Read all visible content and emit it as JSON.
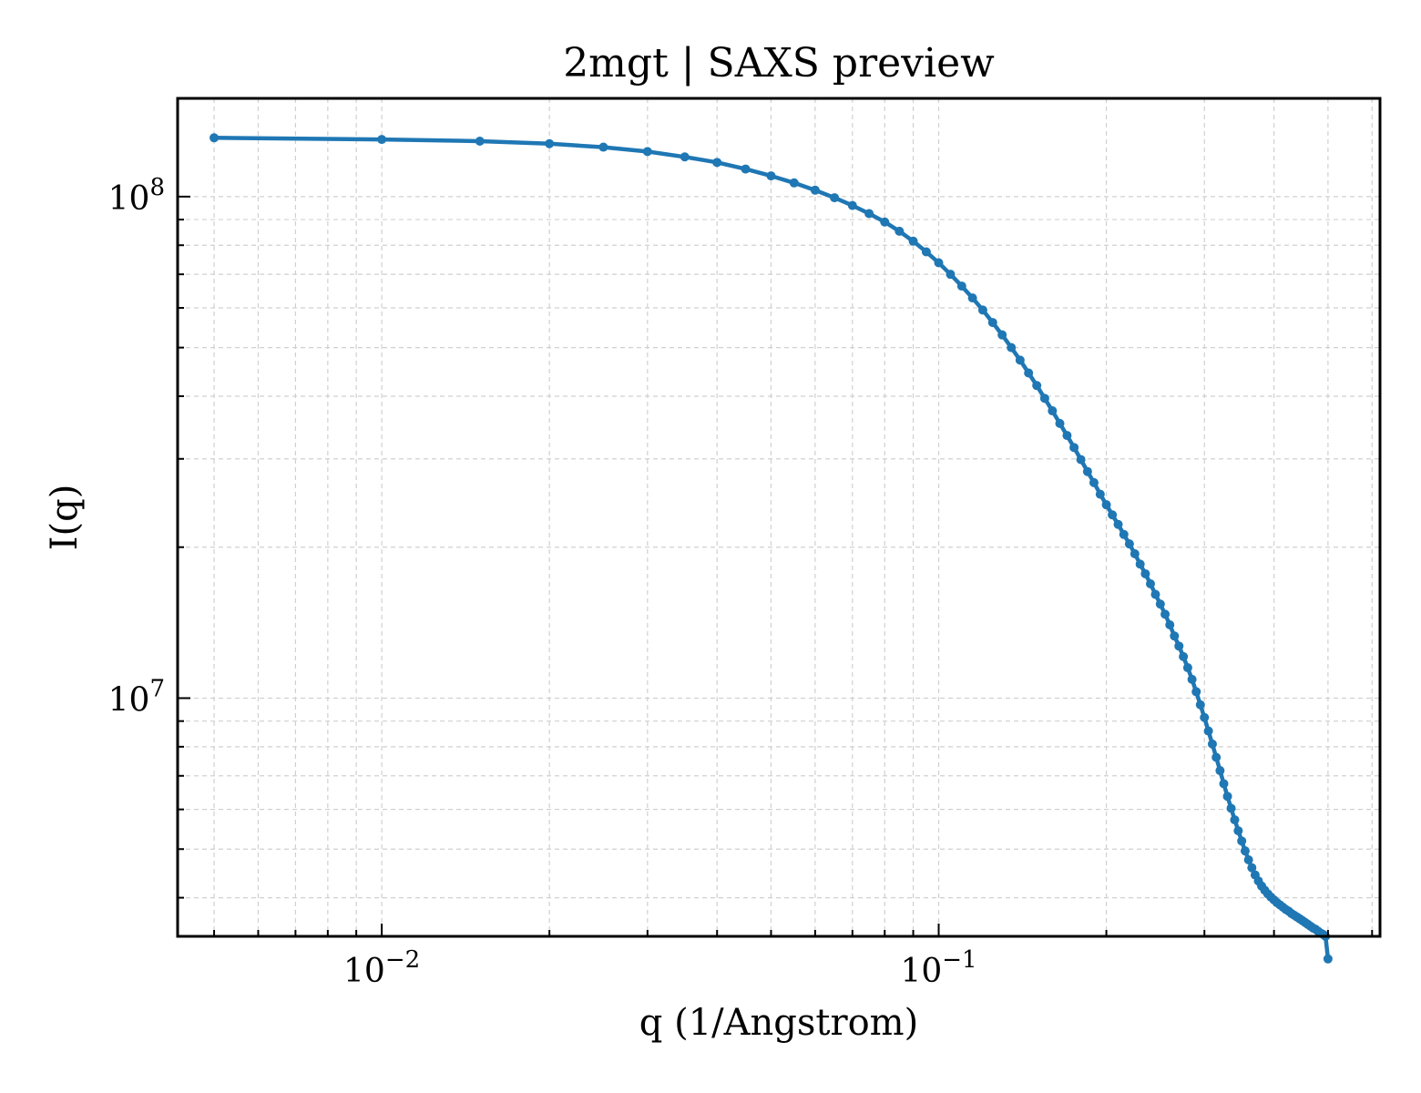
{
  "chart_data": {
    "type": "line",
    "title": "2mgt | SAXS preview",
    "xlabel": "q (1/Angstrom)",
    "ylabel": "I(q)",
    "xscale": "log",
    "yscale": "log",
    "xlim": [
      0.0043,
      0.62
    ],
    "ylim": [
      3350000,
      157000000
    ],
    "grid": true,
    "legend": "none",
    "color": "#1f77b4",
    "x_ticks": [
      {
        "value": 0.01,
        "base": "10",
        "exp": "−2"
      },
      {
        "value": 0.1,
        "base": "10",
        "exp": "−1"
      }
    ],
    "y_ticks": [
      {
        "value": 10000000,
        "base": "10",
        "exp": "7"
      },
      {
        "value": 100000000,
        "base": "10",
        "exp": "8"
      }
    ],
    "series": [
      {
        "x": [
          0.005,
          0.01,
          0.015,
          0.02,
          0.025,
          0.03,
          0.035,
          0.04,
          0.045,
          0.05,
          0.055,
          0.06,
          0.065,
          0.07,
          0.075,
          0.08,
          0.085,
          0.09,
          0.095,
          0.1,
          0.105,
          0.11,
          0.115,
          0.12,
          0.125,
          0.13,
          0.135,
          0.14,
          0.145,
          0.15,
          0.155,
          0.16,
          0.165,
          0.17,
          0.175,
          0.18,
          0.185,
          0.19,
          0.195,
          0.2,
          0.205,
          0.21,
          0.215,
          0.22,
          0.225,
          0.23,
          0.235,
          0.24,
          0.245,
          0.25,
          0.255,
          0.26,
          0.265,
          0.27,
          0.275,
          0.28,
          0.285,
          0.29,
          0.295,
          0.3,
          0.305,
          0.31,
          0.315,
          0.32,
          0.325,
          0.33,
          0.335,
          0.34,
          0.345,
          0.35,
          0.355,
          0.36,
          0.365,
          0.37,
          0.375,
          0.38,
          0.385,
          0.39,
          0.395,
          0.4,
          0.405,
          0.41,
          0.415,
          0.42,
          0.425,
          0.43,
          0.435,
          0.44,
          0.445,
          0.45,
          0.455,
          0.46,
          0.465,
          0.47,
          0.475,
          0.48,
          0.485,
          0.49,
          0.495,
          0.5
        ],
        "y": [
          131000000,
          130000000,
          129000000,
          127500000,
          125500000,
          123000000,
          120000000,
          117000000,
          113500000,
          110000000,
          106500000,
          103000000,
          99500000,
          96000000,
          92500000,
          89000000,
          85300000,
          81500000,
          77600000,
          73800000,
          70000000,
          66300000,
          62800000,
          59400000,
          56100000,
          53000000,
          50000000,
          47200000,
          44500000,
          42000000,
          39600000,
          37400000,
          35300000,
          33400000,
          31600000,
          29900000,
          28300000,
          26900000,
          25500000,
          24300000,
          23200000,
          22200000,
          21200000,
          20300000,
          19400000,
          18500000,
          17700000,
          16900000,
          16100000,
          15400000,
          14700000,
          14000000,
          13300000,
          12700000,
          12100000,
          11500000,
          10900000,
          10300000,
          9700000,
          9150000,
          8600000,
          8100000,
          7620000,
          7170000,
          6750000,
          6370000,
          6030000,
          5720000,
          5440000,
          5190000,
          4960000,
          4760000,
          4590000,
          4440000,
          4320000,
          4220000,
          4140000,
          4070000,
          4010000,
          3960000,
          3910000,
          3870000,
          3830000,
          3790000,
          3760000,
          3720000,
          3690000,
          3660000,
          3630000,
          3600000,
          3570000,
          3540000,
          3510000,
          3480000,
          3460000,
          3430000,
          3400000,
          3380000,
          3350000,
          3020000
        ]
      }
    ]
  }
}
